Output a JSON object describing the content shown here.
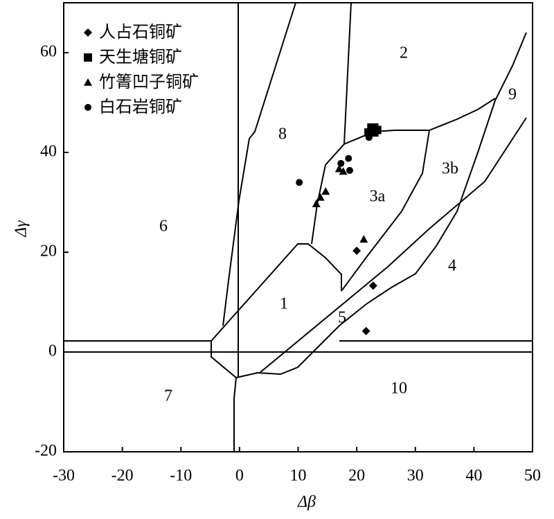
{
  "chart_data": {
    "type": "scatter",
    "x_label": "Δβ",
    "y_label": "Δγ",
    "xlim": [
      -30,
      50
    ],
    "xticks": [
      -30,
      -20,
      -10,
      0,
      10,
      20,
      30,
      40,
      50
    ],
    "ylim": [
      -20,
      70
    ],
    "yticks": [
      -20,
      0,
      20,
      40,
      60
    ],
    "legend": "upper left",
    "series": [
      {
        "name": "人占石铜矿",
        "marker": "diamond",
        "color": "#000000",
        "x": [
          20,
          22.8,
          21.6
        ],
        "y": [
          20.3,
          13.3,
          4.2
        ]
      },
      {
        "name": "天生塘铜矿",
        "marker": "square",
        "color": "#000000",
        "x": [
          22,
          22.5,
          23,
          23.5,
          23
        ],
        "y": [
          44,
          45,
          45,
          44.5,
          44
        ]
      },
      {
        "name": "竹箐凹子铜矿",
        "marker": "triangle",
        "color": "#000000",
        "x": [
          13.1,
          13.8,
          14.7,
          17,
          17.7,
          21.2
        ],
        "y": [
          29.7,
          31,
          32.2,
          36.7,
          36.2,
          22.6
        ]
      },
      {
        "name": "白石岩铜矿",
        "marker": "circle",
        "color": "#000000",
        "x": [
          10.2,
          17.3,
          18.6,
          18.8,
          22.1
        ],
        "y": [
          34,
          37.8,
          38.8,
          36.4,
          43
        ]
      }
    ],
    "annotations": [
      "1",
      "2",
      "3a",
      "3b",
      "4",
      "5",
      "6",
      "7",
      "8",
      "9",
      "10"
    ]
  }
}
